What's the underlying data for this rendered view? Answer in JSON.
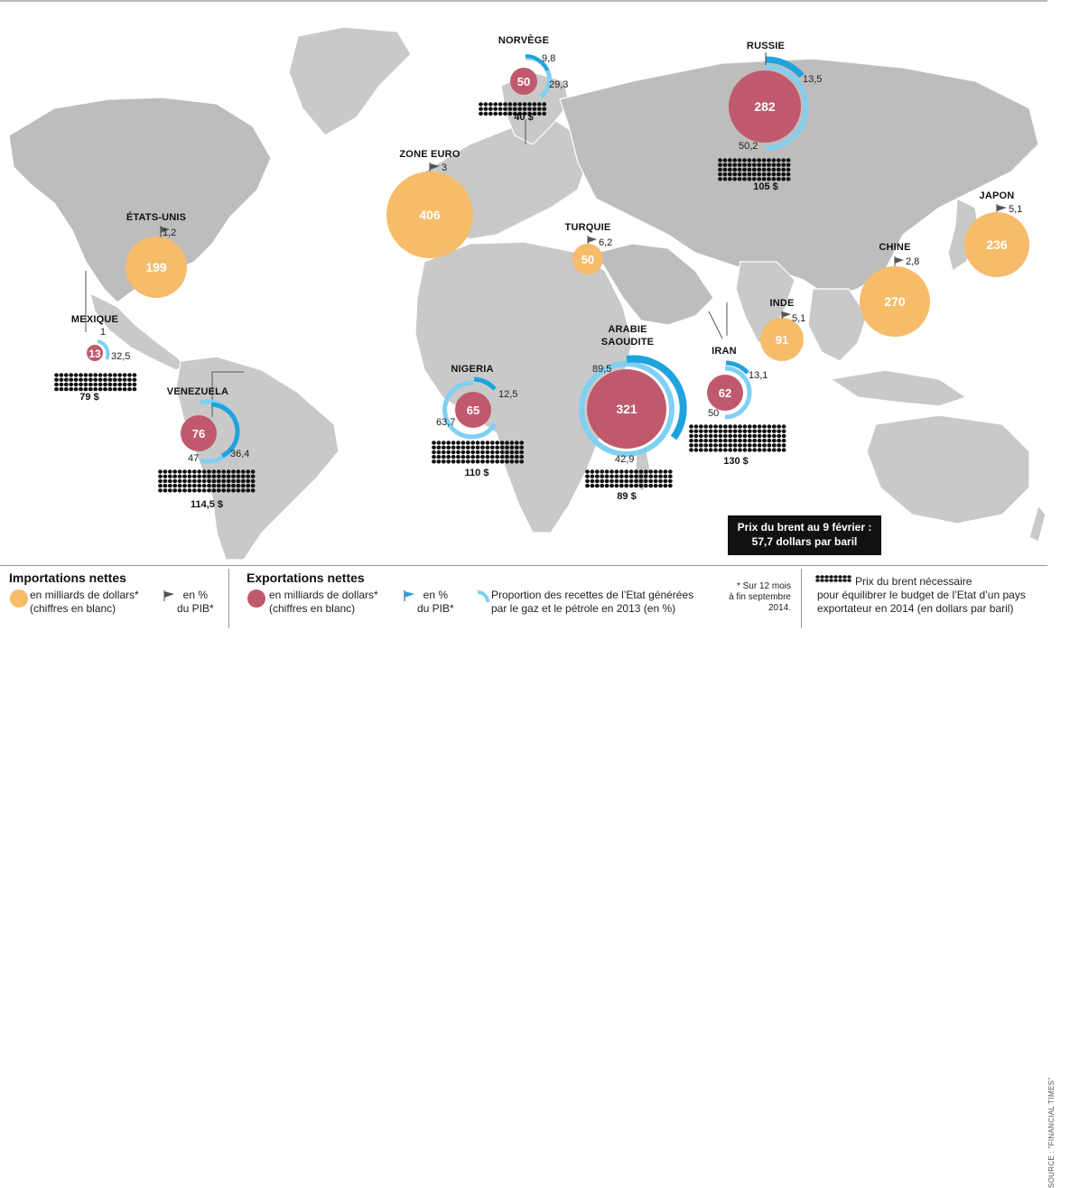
{
  "colors": {
    "import": "#f6bc6a",
    "export": "#c0596d",
    "gdp_import_flag": "#555555",
    "gdp_export_flag": "#1fa3dd",
    "state_revenue": "#7fd0f2",
    "land": "#c7c7c7",
    "land_dark": "#a9a9a9",
    "ocean": "#ffffff"
  },
  "importers": [
    {
      "name": "ÉTATS-UNIS",
      "value": "199",
      "gdp": "1,2"
    },
    {
      "name": "ZONE EURO",
      "value": "406",
      "gdp": "3"
    },
    {
      "name": "TURQUIE",
      "value": "50",
      "gdp": "6,2"
    },
    {
      "name": "INDE",
      "value": "91",
      "gdp": "5,1"
    },
    {
      "name": "CHINE",
      "value": "270",
      "gdp": "2,8"
    },
    {
      "name": "JAPON",
      "value": "236",
      "gdp": "5,1"
    }
  ],
  "exporters": [
    {
      "name": "NORVÈGE",
      "value": "50",
      "gdp": "9,8",
      "revenue": "29,3",
      "brent": "40 $"
    },
    {
      "name": "RUSSIE",
      "value": "282",
      "gdp": "13,5",
      "revenue": "50,2",
      "brent": "105 $"
    },
    {
      "name": "MEXIQUE",
      "value": "13",
      "gdp": "1",
      "revenue": "32,5",
      "brent": "79 $"
    },
    {
      "name": "VENEZUELA",
      "value": "76",
      "gdp": "36,4",
      "revenue": "47",
      "brent": "114,5 $"
    },
    {
      "name": "NIGERIA",
      "value": "65",
      "gdp": "12,5",
      "revenue": "63,7",
      "brent": "110 $"
    },
    {
      "name": "ARABIE SAOUDITE",
      "value": "321",
      "gdp": "42,9",
      "revenue": "89,5",
      "brent": "89 $"
    },
    {
      "name": "IRAN",
      "value": "62",
      "gdp": "13,1",
      "revenue": "50",
      "brent": "130 $"
    }
  ],
  "brent_note": {
    "line1": "Prix du brent au 9 février :",
    "line2": "57,7 dollars par baril"
  },
  "legend": {
    "imports_title": "Importations nettes",
    "imports_bubble_line1": "en milliards de dollars*",
    "imports_bubble_line2": "(chiffres en blanc)",
    "imports_gdp_line1": "en %",
    "imports_gdp_line2": "du PIB*",
    "exports_title": "Exportations nettes",
    "exports_bubble_line1": "en milliards de dollars*",
    "exports_bubble_line2": "(chiffres en blanc)",
    "exports_gdp_line1": "en %",
    "exports_gdp_line2": "du PIB*",
    "revenue_line1": "Proportion des recettes de l’Etat générées",
    "revenue_line2": "par le gaz et le pétrole en 2013 (en %)",
    "footnote_line1": "* Sur 12 mois",
    "footnote_line2": "à fin septembre",
    "footnote_line3": "2014.",
    "brent_line1": "Prix du brent nécessaire",
    "brent_line2": "pour équilibrer le budget de l’Etat d’un pays",
    "brent_line3": "exportateur en 2014 (en dollars par baril)"
  },
  "source": "SOURCE : \"FINANCIAL TIMES\""
}
